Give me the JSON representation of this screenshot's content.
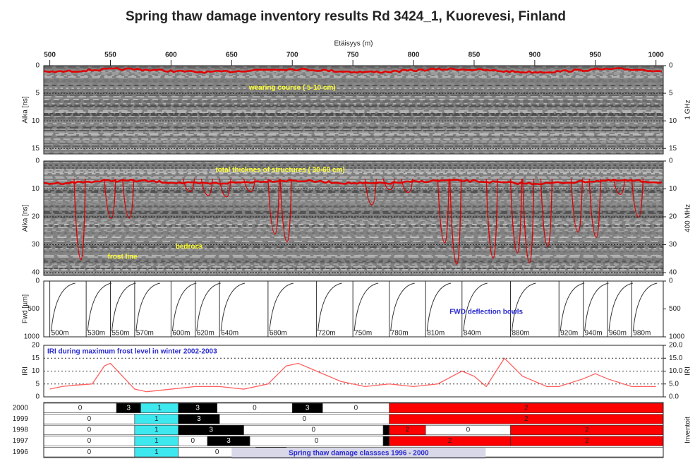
{
  "title": "Spring thaw damage inventory results Rd 3424_1, Kuorevesi, Finland",
  "chart_data": [
    {
      "type": "radargram",
      "xlabel": "Etäisyys (m)",
      "xlim": [
        495,
        1006
      ],
      "xticks": [
        500,
        550,
        600,
        650,
        700,
        750,
        800,
        850,
        900,
        950,
        1000
      ],
      "ylabel": "Aika [ns]",
      "y2label": "1 GHz",
      "ylim": [
        0,
        16
      ],
      "yticks": [
        0,
        5,
        10,
        15
      ],
      "grid": true,
      "annotations": [
        "wearing course ( 5-10 cm)"
      ]
    },
    {
      "type": "radargram",
      "xlim": [
        495,
        1006
      ],
      "ylabel": "Aika [ns]",
      "y2label": "400 MHz",
      "ylim": [
        0,
        41
      ],
      "yticks": [
        0,
        10,
        20,
        30,
        40
      ],
      "grid": true,
      "annotations": [
        "total thicknes of structures ( 30-60 cm)",
        "frost line",
        "bedrock"
      ]
    },
    {
      "type": "fwd",
      "xlim": [
        495,
        1006
      ],
      "ylabel": "Fwd [µm]",
      "ylim": [
        0,
        1000
      ],
      "yticks": [
        0,
        500,
        1000
      ],
      "stations": [
        {
          "value": 500,
          "label": "500m"
        },
        {
          "value": 530,
          "label": "530m"
        },
        {
          "value": 550,
          "label": "550m"
        },
        {
          "value": 570,
          "label": "570m"
        },
        {
          "value": 600,
          "label": "600m"
        },
        {
          "value": 620,
          "label": "620m"
        },
        {
          "value": 640,
          "label": "640m"
        },
        {
          "value": 680,
          "label": "680m"
        },
        {
          "value": 720,
          "label": "720m"
        },
        {
          "value": 750,
          "label": "750m"
        },
        {
          "value": 780,
          "label": "780m"
        },
        {
          "value": 810,
          "label": "810m"
        },
        {
          "value": 840,
          "label": "840m"
        },
        {
          "value": 880,
          "label": "880m"
        },
        {
          "value": 920,
          "label": "920m"
        },
        {
          "value": 940,
          "label": "940m"
        },
        {
          "value": 960,
          "label": "960m"
        },
        {
          "value": 980,
          "label": "980m"
        }
      ],
      "annotations": [
        "FWD deflection bowls"
      ]
    },
    {
      "type": "line",
      "xlim": [
        495,
        1006
      ],
      "ylabel": "IRI",
      "y2label": "IRI",
      "ylim": [
        0,
        20
      ],
      "yticks": [
        0,
        5,
        10,
        15,
        20
      ],
      "y2ticks": [
        {
          "value": 0,
          "label": "0.0"
        },
        {
          "value": 5,
          "label": "5.0"
        },
        {
          "value": 10,
          "label": "10.0"
        },
        {
          "value": 15,
          "label": "15.0"
        },
        {
          "value": 20,
          "label": "20.0"
        }
      ],
      "grid": true,
      "color": "#ff6060",
      "x": [
        500,
        510,
        520,
        535,
        545,
        550,
        560,
        570,
        580,
        600,
        620,
        640,
        660,
        680,
        695,
        705,
        720,
        740,
        760,
        780,
        800,
        820,
        840,
        850,
        860,
        875,
        890,
        910,
        920,
        940,
        950,
        960,
        980,
        1000
      ],
      "values": [
        3,
        4,
        4.5,
        5,
        12,
        13,
        8,
        3,
        2,
        3,
        4,
        4,
        3,
        5,
        12,
        13,
        10,
        6,
        4,
        5,
        4,
        5,
        10,
        8,
        4,
        15,
        8,
        4,
        4,
        7,
        9,
        7,
        4,
        4
      ],
      "annotations": [
        "IRI  during maximum frost level in  winter 2002-2003"
      ]
    },
    {
      "type": "ranges",
      "xlim": [
        495,
        1006
      ],
      "y2label": "Inventoit",
      "class_colors": [
        "#ffffff",
        "#3de8ee",
        "#ff0000",
        "#000000"
      ],
      "rows": [
        {
          "name": "2000",
          "segments": [
            {
              "start": 495,
              "end": 555,
              "value": 0
            },
            {
              "start": 555,
              "end": 575,
              "value": 3
            },
            {
              "start": 575,
              "end": 606,
              "value": 1
            },
            {
              "start": 606,
              "end": 638,
              "value": 3
            },
            {
              "start": 638,
              "end": 700,
              "value": 0
            },
            {
              "start": 700,
              "end": 725,
              "value": 3
            },
            {
              "start": 725,
              "end": 780,
              "value": 0
            },
            {
              "start": 780,
              "end": 1006,
              "value": 2
            }
          ]
        },
        {
          "name": "1999",
          "segments": [
            {
              "start": 495,
              "end": 570,
              "value": 0
            },
            {
              "start": 570,
              "end": 606,
              "value": 1
            },
            {
              "start": 606,
              "end": 640,
              "value": 3
            },
            {
              "start": 640,
              "end": 780,
              "value": 0
            },
            {
              "start": 780,
              "end": 1006,
              "value": 2
            }
          ]
        },
        {
          "name": "1998",
          "segments": [
            {
              "start": 495,
              "end": 570,
              "value": 0
            },
            {
              "start": 570,
              "end": 606,
              "value": 1
            },
            {
              "start": 606,
              "end": 660,
              "value": 3
            },
            {
              "start": 660,
              "end": 775,
              "value": 0
            },
            {
              "start": 775,
              "end": 780,
              "value": 3
            },
            {
              "start": 780,
              "end": 810,
              "value": 2
            },
            {
              "start": 810,
              "end": 880,
              "value": 0
            },
            {
              "start": 880,
              "end": 1006,
              "value": 2
            }
          ]
        },
        {
          "name": "1997",
          "segments": [
            {
              "start": 495,
              "end": 570,
              "value": 0
            },
            {
              "start": 570,
              "end": 606,
              "value": 1
            },
            {
              "start": 606,
              "end": 630,
              "value": 0
            },
            {
              "start": 630,
              "end": 665,
              "value": 3
            },
            {
              "start": 665,
              "end": 775,
              "value": 0
            },
            {
              "start": 775,
              "end": 780,
              "value": 3
            },
            {
              "start": 780,
              "end": 880,
              "value": 2
            },
            {
              "start": 880,
              "end": 1006,
              "value": 2
            }
          ]
        },
        {
          "name": "1996",
          "segments": [
            {
              "start": 495,
              "end": 570,
              "value": 0
            },
            {
              "start": 570,
              "end": 606,
              "value": 1
            },
            {
              "start": 606,
              "end": 670,
              "value": 0
            },
            {
              "start": 670,
              "end": 695,
              "value": 3
            },
            {
              "start": 695,
              "end": 1006,
              "value": 0
            }
          ]
        }
      ],
      "annotations": [
        "Spring thaw damage classses 1996 - 2000"
      ]
    }
  ]
}
